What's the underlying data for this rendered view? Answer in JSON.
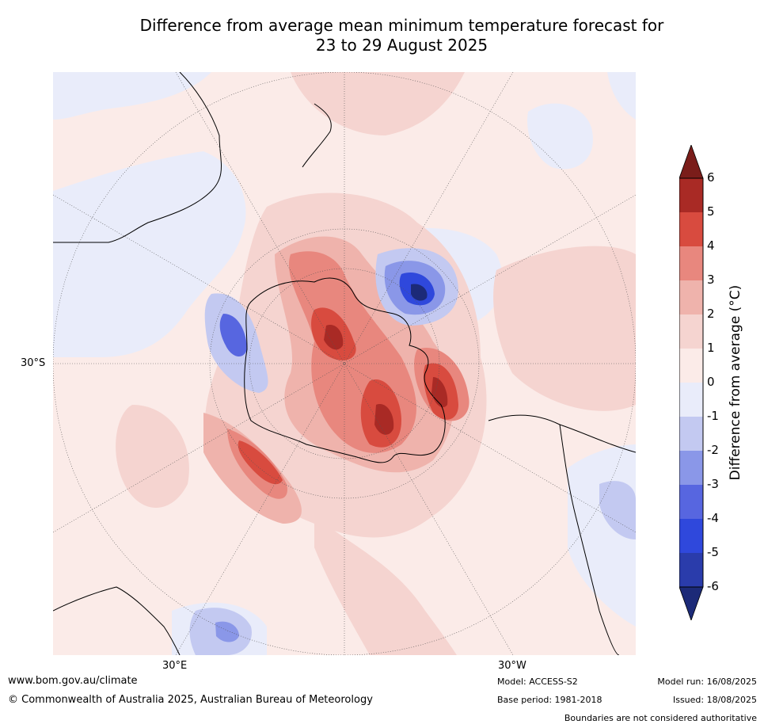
{
  "title_line1": "Difference from average mean minimum temperature forecast for",
  "title_line2": "23 to 29 August 2025",
  "map": {
    "lat_label": "30°S",
    "lon_labels": [
      "30°E",
      "30°W"
    ]
  },
  "colorbar": {
    "title": "Difference from average (°C)",
    "ticks": [
      "6",
      "5",
      "4",
      "3",
      "2",
      "1",
      "0",
      "-1",
      "-2",
      "-3",
      "-4",
      "-5",
      "-6"
    ],
    "colors": {
      "gt6": "#7a1d1a",
      "5to6": "#a92a25",
      "4to5": "#d84b3f",
      "3to4": "#e8877e",
      "2to3": "#efb3ac",
      "1to2": "#f5d4d0",
      "0to1": "#fbebe8",
      "m1to0": "#e9ecfa",
      "m2tom1": "#c3c9f1",
      "m3tom2": "#8a97e8",
      "m4tom3": "#5766e0",
      "m5tom4": "#2f48dc",
      "m6tom5": "#2a3cab",
      "lt_m6": "#1c2a78"
    }
  },
  "footer": {
    "website": "www.bom.gov.au/climate",
    "copyright": "© Commonwealth of Australia 2025, Australian Bureau of Meteorology",
    "model": "Model: ACCESS-S2",
    "base_period": "Base period: 1981-2018",
    "model_run": "Model run: 16/08/2025",
    "issued": "Issued: 18/08/2025",
    "boundaries": "Boundaries are not considered authoritative"
  }
}
